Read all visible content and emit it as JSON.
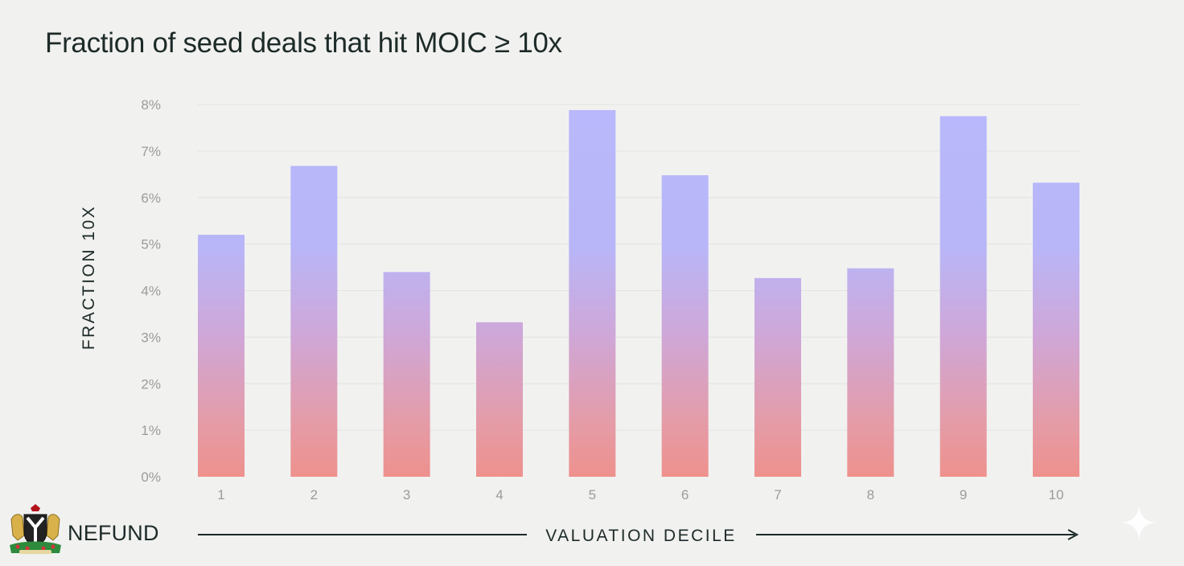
{
  "chart_data": {
    "type": "bar",
    "title": "Fraction of seed deals that hit MOIC ≥ 10x",
    "xlabel": "VALUATION DECILE",
    "ylabel": "FRACTION 10X",
    "categories": [
      "1",
      "2",
      "3",
      "4",
      "5",
      "6",
      "7",
      "8",
      "9",
      "10"
    ],
    "values": [
      5.2,
      6.68,
      4.4,
      3.32,
      7.88,
      6.48,
      4.27,
      4.48,
      7.75,
      6.32
    ],
    "ylim": [
      0,
      8
    ],
    "yticks": [
      "0%",
      "1%",
      "2%",
      "3%",
      "4%",
      "5%",
      "6%",
      "7%",
      "8%"
    ],
    "grid": true,
    "colors": {
      "bar_top": "#b7b6fb",
      "bar_bottom": "#ec9390",
      "grid": "#e2e2e1",
      "tick_text": "#9b9b9b",
      "axis_text": "#1d2b28"
    }
  },
  "branding": {
    "name": "NEFUND",
    "logo_icon": "nigeria-coat-of-arms-icon",
    "sparkle_icon": "sparkle-icon"
  }
}
